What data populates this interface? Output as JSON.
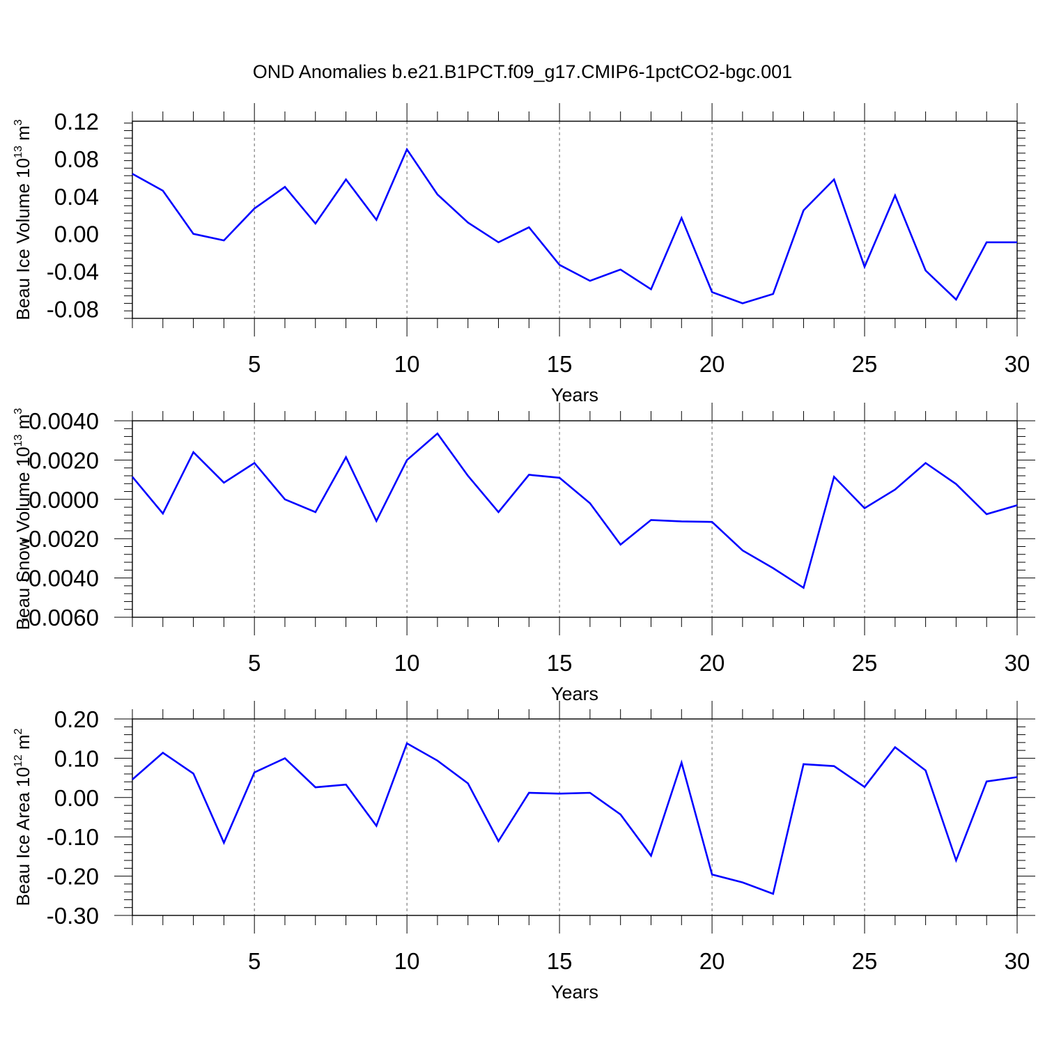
{
  "title": "OND Anomalies b.e21.B1PCT.f09_g17.CMIP6-1pctCO2-bgc.001",
  "line_color": "#0000ff",
  "chart_data": [
    {
      "type": "line",
      "ylabel": {
        "text": "Beau Ice Volume 10",
        "exp": "13",
        "unit": " m",
        "unit_exp": "3"
      },
      "xlabel": "Years",
      "xlim": [
        1,
        30
      ],
      "ylim": [
        -0.09,
        0.12
      ],
      "x_ticks": [
        5,
        10,
        15,
        20,
        25,
        30
      ],
      "x_tick_labels": [
        "5",
        "10",
        "15",
        "20",
        "25",
        "30"
      ],
      "y_ticks": [
        0.12,
        0.08,
        0.04,
        0.0,
        -0.04,
        -0.08
      ],
      "y_tick_labels": [
        "0.12",
        "0.08",
        "0.04",
        "0.00",
        "-0.04",
        "-0.08"
      ],
      "grid": "vertical dashed at labeled x ticks",
      "x": [
        1,
        2,
        3,
        4,
        5,
        6,
        7,
        8,
        9,
        10,
        11,
        12,
        13,
        14,
        15,
        16,
        17,
        18,
        19,
        20,
        21,
        22,
        23,
        24,
        25,
        26,
        27,
        28,
        29,
        30
      ],
      "values": [
        0.064,
        0.046,
        0.0,
        -0.007,
        0.027,
        0.05,
        0.011,
        0.058,
        0.015,
        0.09,
        0.042,
        0.012,
        -0.009,
        0.007,
        -0.033,
        -0.05,
        -0.038,
        -0.059,
        0.017,
        -0.062,
        -0.074,
        -0.064,
        0.025,
        0.058,
        -0.035,
        0.041,
        -0.039,
        -0.07,
        -0.009,
        -0.009
      ]
    },
    {
      "type": "line",
      "ylabel": {
        "text": "Beau Snow Volume 10",
        "exp": "13",
        "unit": " m",
        "unit_exp": "3"
      },
      "xlabel": "Years",
      "xlim": [
        1,
        30
      ],
      "ylim": [
        -0.006,
        0.004
      ],
      "x_ticks": [
        5,
        10,
        15,
        20,
        25,
        30
      ],
      "x_tick_labels": [
        "5",
        "10",
        "15",
        "20",
        "25",
        "30"
      ],
      "y_ticks": [
        0.004,
        0.002,
        0.0,
        -0.002,
        -0.004,
        -0.006
      ],
      "y_tick_labels": [
        "0.0040",
        "0.0020",
        "0.0000",
        "-0.0020",
        "-0.0040",
        "-0.0060"
      ],
      "grid": "vertical dashed at labeled x ticks",
      "x": [
        1,
        2,
        3,
        4,
        5,
        6,
        7,
        8,
        9,
        10,
        11,
        12,
        13,
        14,
        15,
        16,
        17,
        18,
        19,
        20,
        21,
        22,
        23,
        24,
        25,
        26,
        27,
        28,
        29,
        30
      ],
      "values": [
        0.00115,
        -0.00072,
        0.0024,
        0.00085,
        0.00185,
        0.0,
        -0.00065,
        0.00215,
        -0.0011,
        0.002,
        0.00335,
        0.0012,
        -0.00065,
        0.00125,
        0.0011,
        -0.0002,
        -0.0023,
        -0.00105,
        -0.00112,
        -0.00115,
        -0.0026,
        -0.0035,
        -0.0045,
        0.00115,
        -0.00045,
        0.0005,
        0.00185,
        0.00078,
        -0.00075,
        -0.0003
      ]
    },
    {
      "type": "line",
      "ylabel": {
        "text": "Beau Ice Area 10",
        "exp": "12",
        "unit": " m",
        "unit_exp": "2"
      },
      "xlabel": "Years",
      "xlim": [
        1,
        30
      ],
      "ylim": [
        -0.3,
        0.2
      ],
      "x_ticks": [
        5,
        10,
        15,
        20,
        25,
        30
      ],
      "x_tick_labels": [
        "5",
        "10",
        "15",
        "20",
        "25",
        "30"
      ],
      "y_ticks": [
        0.2,
        0.1,
        0.0,
        -0.1,
        -0.2,
        -0.3
      ],
      "y_tick_labels": [
        "0.20",
        "0.10",
        "0.00",
        "-0.10",
        "-0.20",
        "-0.30"
      ],
      "grid": "vertical dashed at labeled x ticks",
      "x": [
        1,
        2,
        3,
        4,
        5,
        6,
        7,
        8,
        9,
        10,
        11,
        12,
        13,
        14,
        15,
        16,
        17,
        18,
        19,
        20,
        21,
        22,
        23,
        24,
        25,
        26,
        27,
        28,
        29,
        30
      ],
      "values": [
        0.046,
        0.114,
        0.061,
        -0.115,
        0.064,
        0.1,
        0.026,
        0.033,
        -0.072,
        0.138,
        0.094,
        0.036,
        -0.111,
        0.012,
        0.01,
        0.012,
        -0.043,
        -0.148,
        0.089,
        -0.196,
        -0.216,
        -0.245,
        0.085,
        0.08,
        0.027,
        0.128,
        0.069,
        -0.16,
        0.041,
        0.052
      ]
    }
  ]
}
